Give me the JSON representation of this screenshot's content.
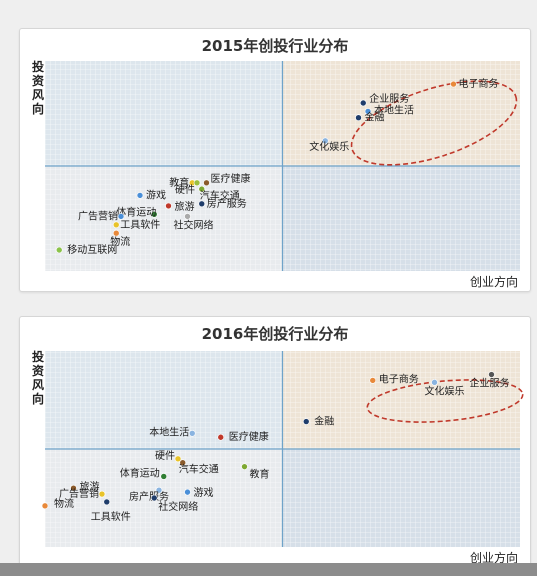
{
  "colors": {
    "quad_top_left": "#dde6ed",
    "quad_top_right": "#eee4d6",
    "quad_bottom_left": "#e8ebee",
    "quad_bottom_right": "#d6dfe8",
    "divider": "#6fa3c9",
    "highlight": "#c0392b"
  },
  "chart_data": [
    {
      "type": "scatter",
      "title": "2015年创投行业分布",
      "xlabel": "创业方向",
      "ylabel": "投资风向",
      "grid": true,
      "highlighted": [
        "电子商务",
        "企业服务",
        "本地生活",
        "金融"
      ],
      "points": [
        {
          "label": "电子商务",
          "x": 8.6,
          "y": 8.9,
          "color": "#e8893a"
        },
        {
          "label": "企业服务",
          "x": 6.7,
          "y": 8.0,
          "color": "#1f3d6b"
        },
        {
          "label": "本地生活",
          "x": 6.8,
          "y": 7.6,
          "color": "#4a8fd8"
        },
        {
          "label": "金融",
          "x": 6.6,
          "y": 7.3,
          "color": "#1f3d6b"
        },
        {
          "label": "文化娱乐",
          "x": 5.9,
          "y": 6.2,
          "color": "#8ab4e0"
        },
        {
          "label": "医疗健康",
          "x": 3.4,
          "y": 4.2,
          "color": "#8a5a2b"
        },
        {
          "label": "教育",
          "x": 3.1,
          "y": 4.2,
          "color": "#e8c32a"
        },
        {
          "label": "硬件",
          "x": 3.2,
          "y": 4.2,
          "color": "#9bbf3f"
        },
        {
          "label": "汽车交通",
          "x": 3.3,
          "y": 3.9,
          "color": "#7da832"
        },
        {
          "label": "游戏",
          "x": 2.0,
          "y": 3.6,
          "color": "#4a8fd8"
        },
        {
          "label": "房产服务",
          "x": 3.3,
          "y": 3.2,
          "color": "#1f3d6b"
        },
        {
          "label": "旅游",
          "x": 2.6,
          "y": 3.1,
          "color": "#c0392b"
        },
        {
          "label": "体育运动",
          "x": 2.3,
          "y": 2.7,
          "color": "#2e7d32"
        },
        {
          "label": "社交网络",
          "x": 3.0,
          "y": 2.6,
          "color": "#aaaaaa"
        },
        {
          "label": "广告营销",
          "x": 1.6,
          "y": 2.6,
          "color": "#4a8fd8"
        },
        {
          "label": "工具软件",
          "x": 1.5,
          "y": 2.2,
          "color": "#e8c32a"
        },
        {
          "label": "物流",
          "x": 1.5,
          "y": 1.8,
          "color": "#e8893a"
        },
        {
          "label": "移动互联网",
          "x": 0.3,
          "y": 1.0,
          "color": "#8bc34a"
        }
      ]
    },
    {
      "type": "scatter",
      "title": "2016年创投行业分布",
      "xlabel": "创业方向",
      "ylabel": "投资风向",
      "grid": true,
      "highlighted": [
        "电子商务",
        "文化娱乐",
        "企业服务",
        "医疗健康"
      ],
      "points": [
        {
          "label": "电子商务",
          "x": 6.9,
          "y": 8.5,
          "color": "#e8893a"
        },
        {
          "label": "文化娱乐",
          "x": 8.2,
          "y": 8.4,
          "color": "#8ab4e0"
        },
        {
          "label": "企业服务",
          "x": 9.4,
          "y": 8.8,
          "color": "#555555"
        },
        {
          "label": "金融",
          "x": 5.5,
          "y": 6.4,
          "color": "#1f3d6b"
        },
        {
          "label": "本地生活",
          "x": 3.1,
          "y": 5.8,
          "color": "#8ab4e0"
        },
        {
          "label": "医疗健康",
          "x": 3.7,
          "y": 5.6,
          "color": "#c0392b"
        },
        {
          "label": "硬件",
          "x": 2.8,
          "y": 4.5,
          "color": "#e8c32a"
        },
        {
          "label": "汽车交通",
          "x": 2.9,
          "y": 4.3,
          "color": "#8a5a2b"
        },
        {
          "label": "教育",
          "x": 4.2,
          "y": 4.1,
          "color": "#7da832"
        },
        {
          "label": "体育运动",
          "x": 2.5,
          "y": 3.6,
          "color": "#2e7d32"
        },
        {
          "label": "旅游",
          "x": 0.6,
          "y": 3.0,
          "color": "#8a5a2b"
        },
        {
          "label": "房产服务",
          "x": 2.4,
          "y": 2.9,
          "color": "#8ab4e0"
        },
        {
          "label": "游戏",
          "x": 3.0,
          "y": 2.8,
          "color": "#4a8fd8"
        },
        {
          "label": "广告营销",
          "x": 1.2,
          "y": 2.7,
          "color": "#e8c32a"
        },
        {
          "label": "社交网络",
          "x": 2.3,
          "y": 2.5,
          "color": "#1f3d6b"
        },
        {
          "label": "物流",
          "x": 0.0,
          "y": 2.1,
          "color": "#e8893a"
        },
        {
          "label": "工具软件",
          "x": 1.3,
          "y": 2.3,
          "color": "#1f3d6b"
        }
      ]
    }
  ]
}
